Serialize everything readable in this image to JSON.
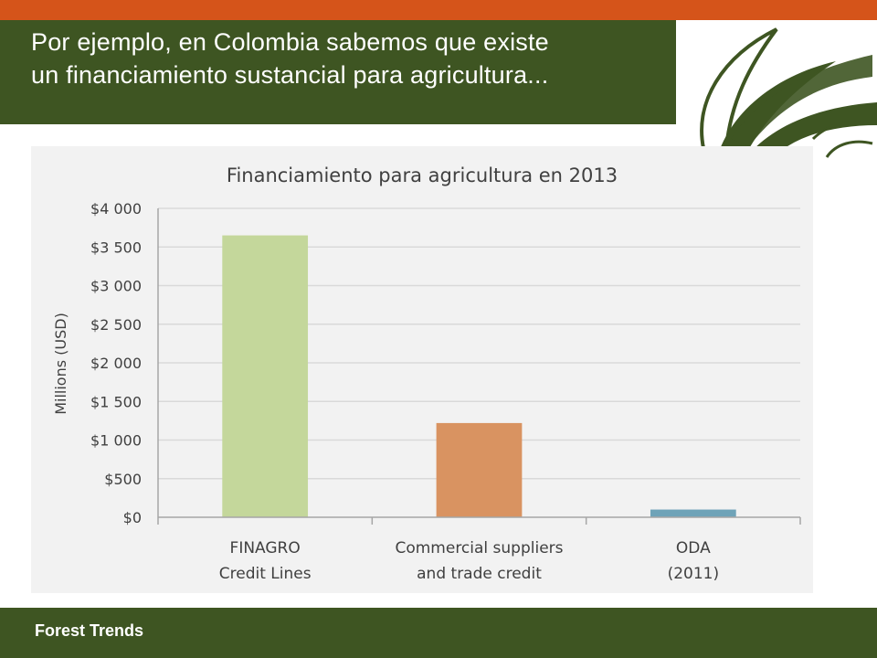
{
  "slide": {
    "title": "Por ejemplo, en Colombia sabemos que existe un financiamiento sustancial para agricultura...",
    "footer": "Forest Trends"
  },
  "colors": {
    "top_stripe": "#d5541a",
    "band": "#3e5522",
    "panel": "#f2f2f2",
    "gridline": "#d9d9d9",
    "axis": "#a6a6a6"
  },
  "icons": {
    "logo": "leaf-sprout-logo-icon"
  },
  "chart_data": {
    "type": "bar",
    "title": "Financiamiento para agricultura en 2013",
    "xlabel": "",
    "ylabel": "Millions (USD)",
    "ylim": [
      0,
      4000
    ],
    "yticks": [
      0,
      500,
      1000,
      1500,
      2000,
      2500,
      3000,
      3500,
      4000
    ],
    "ytick_labels": [
      "$0",
      "$500",
      "$1 000",
      "$1 500",
      "$2 000",
      "$2 500",
      "$3 000",
      "$3 500",
      "$4 000"
    ],
    "categories": [
      [
        "FINAGRO",
        "Credit Lines"
      ],
      [
        "Commercial suppliers",
        "and trade credit"
      ],
      [
        "ODA",
        "(2011)"
      ]
    ],
    "values": [
      3650,
      1220,
      100
    ],
    "bar_colors": [
      "#c4d79b",
      "#d99361",
      "#6fa3b8"
    ],
    "grid": true,
    "legend": "none"
  }
}
